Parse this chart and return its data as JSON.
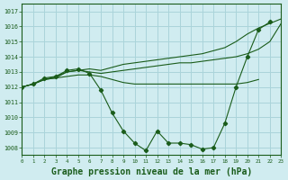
{
  "title": "Graphe pression niveau de la mer (hPa)",
  "xlabel_fontsize": 7,
  "bg_color": "#d0ecf0",
  "grid_color": "#aad4da",
  "line_color": "#1a5c1a",
  "marker": "D",
  "marker_size": 2.2,
  "xmin": 0,
  "xmax": 23,
  "ymin": 1007.5,
  "ymax": 1017.5,
  "yticks": [
    1008,
    1009,
    1010,
    1011,
    1012,
    1013,
    1014,
    1015,
    1016,
    1017
  ],
  "series": [
    {
      "x": [
        0,
        1,
        2,
        3,
        4,
        5,
        6,
        7,
        8,
        9,
        10,
        11,
        12,
        13,
        14,
        15,
        16,
        17,
        18,
        19,
        20,
        21
      ],
      "y": [
        1012.0,
        1012.2,
        1012.5,
        1012.6,
        1012.7,
        1012.8,
        1012.8,
        1012.7,
        1012.5,
        1012.3,
        1012.2,
        1012.2,
        1012.2,
        1012.2,
        1012.2,
        1012.2,
        1012.2,
        1012.2,
        1012.2,
        1012.2,
        1012.3,
        1012.5
      ],
      "has_markers": false
    },
    {
      "x": [
        0,
        1,
        2,
        3,
        4,
        5,
        6,
        7,
        8,
        9,
        10,
        11,
        12,
        13,
        14,
        15,
        16,
        17,
        18,
        19,
        20,
        21,
        22,
        23
      ],
      "y": [
        1012.0,
        1012.2,
        1012.5,
        1012.6,
        1013.0,
        1013.1,
        1013.0,
        1012.9,
        1013.0,
        1013.1,
        1013.2,
        1013.3,
        1013.4,
        1013.5,
        1013.6,
        1013.6,
        1013.7,
        1013.8,
        1013.9,
        1014.0,
        1014.2,
        1014.5,
        1015.0,
        1016.2
      ],
      "has_markers": false
    },
    {
      "x": [
        0,
        1,
        2,
        3,
        4,
        5,
        6,
        7,
        8,
        9,
        10,
        11,
        12,
        13,
        14,
        15,
        16,
        17,
        18,
        19,
        20,
        21,
        22,
        23
      ],
      "y": [
        1012.0,
        1012.2,
        1012.5,
        1012.7,
        1013.0,
        1013.1,
        1013.2,
        1013.1,
        1013.3,
        1013.5,
        1013.6,
        1013.7,
        1013.8,
        1013.9,
        1014.0,
        1014.1,
        1014.2,
        1014.4,
        1014.6,
        1015.0,
        1015.5,
        1015.9,
        1016.2,
        1016.5
      ],
      "has_markers": false
    },
    {
      "x": [
        0,
        1,
        2,
        3,
        4,
        5,
        6,
        7,
        8,
        9,
        10,
        11,
        12,
        13,
        14,
        15,
        16,
        17,
        18,
        19,
        20,
        21,
        22
      ],
      "y": [
        1012.0,
        1012.2,
        1012.6,
        1012.7,
        1013.1,
        1013.2,
        1012.9,
        1011.8,
        1010.3,
        1009.1,
        1008.3,
        1007.8,
        1009.1,
        1008.3,
        1008.3,
        1008.2,
        1007.9,
        1008.0,
        1009.6,
        1012.0,
        1014.0,
        1015.8,
        1016.3
      ],
      "has_markers": true
    }
  ]
}
